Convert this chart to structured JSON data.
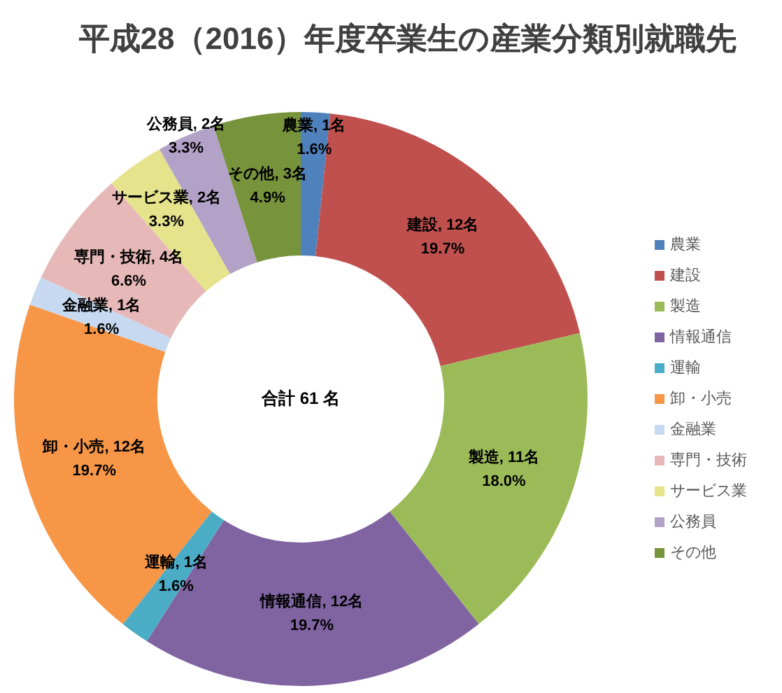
{
  "chart_data": {
    "type": "donut",
    "title": "平成28（2016）年度卒業生の産業分類別就職先",
    "categories": [
      "農業",
      "建設",
      "製造",
      "情報通信",
      "運輸",
      "卸・小売",
      "金融業",
      "専門・技術",
      "サービス業",
      "公務員",
      "その他"
    ],
    "values": [
      1,
      12,
      11,
      12,
      1,
      12,
      1,
      4,
      2,
      2,
      3
    ],
    "colors": [
      "#4f81bd",
      "#c0504d",
      "#9bbb59",
      "#8064a2",
      "#4bacc6",
      "#f79646",
      "#c6d9f1",
      "#e6b9b8",
      "#e5e38c",
      "#b3a2c7",
      "#77933c"
    ],
    "value_labels": [
      "農業, 1名\n1.6%",
      "建設, 12名\n19.7%",
      "製造, 11名\n18.0%",
      "情報通信, 12名\n19.7%",
      "運輸, 1名\n1.6%",
      "卸・小売, 12名\n19.7%",
      "金融業, 1名\n1.6%",
      "専門・技術, 4名\n6.6%",
      "サービス業, 2名\n3.3%",
      "公務員, 2名\n3.3%",
      "その他, 3名\n4.9%"
    ],
    "annotations": [
      "合計 61 名"
    ],
    "legend": "right"
  }
}
